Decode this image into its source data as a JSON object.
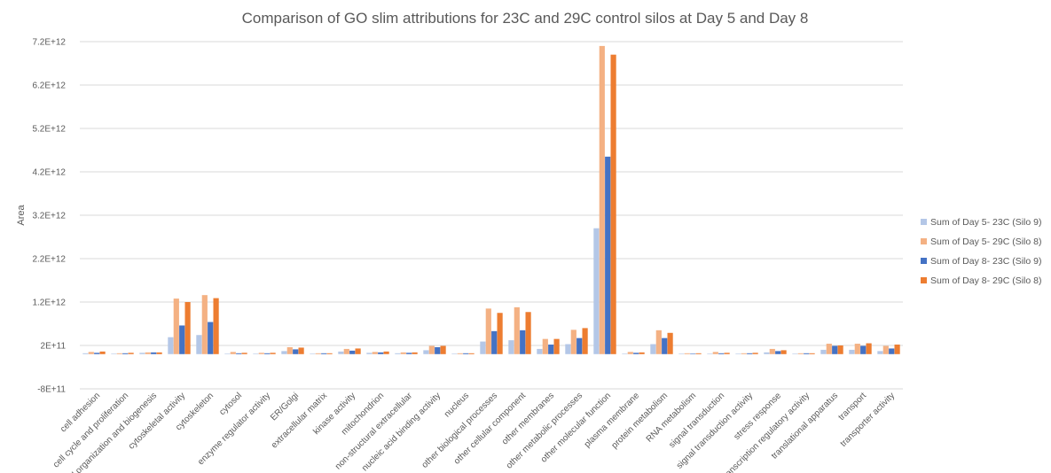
{
  "chart_data": {
    "type": "bar",
    "title": "Comparison of GO slim attributions for 23C and 29C control silos at Day 5 and Day 8",
    "xlabel": "",
    "ylabel": "Area",
    "ylim": [
      -800000000000,
      7200000000000
    ],
    "yticks": [
      -800000000000,
      200000000000,
      1200000000000,
      2200000000000,
      3200000000000,
      4200000000000,
      5200000000000,
      6200000000000,
      7200000000000
    ],
    "ytick_labels": [
      "-8E+11",
      "2E+11",
      "1.2E+12",
      "2.2E+12",
      "3.2E+12",
      "4.2E+12",
      "5.2E+12",
      "6.2E+12",
      "7.2E+12"
    ],
    "grid": true,
    "legend_position": "right",
    "categories": [
      "cell adhesion",
      "cell cycle and proliferation",
      "cell organization and biogenesis",
      "cytoskeletal activity",
      "cytoskeleton",
      "cytosol",
      "enzyme regulator activity",
      "ER/Golgi",
      "extracellular matrix",
      "kinase activity",
      "mitochondrion",
      "non-structural extracellular",
      "nucleic acid binding activity",
      "nucleus",
      "other biological processes",
      "other cellular component",
      "other membranes",
      "other metabolic processes",
      "other molecular function",
      "plasma membrane",
      "protein metabolism",
      "RNA metabolism",
      "signal transduction",
      "signal transduction activity",
      "stress response",
      "transcription regulatory activity",
      "translational apparatus",
      "transport",
      "transporter activity"
    ],
    "series": [
      {
        "name": "Sum of Day 5- 23C (Silo 9)",
        "color": "#b4c7e7",
        "values": [
          20000000000,
          10000000000,
          30000000000,
          390000000000,
          440000000000,
          10000000000,
          10000000000,
          70000000000,
          10000000000,
          60000000000,
          30000000000,
          20000000000,
          90000000000,
          10000000000,
          290000000000,
          320000000000,
          120000000000,
          230000000000,
          2900000000000,
          10000000000,
          230000000000,
          10000000000,
          10000000000,
          10000000000,
          40000000000,
          10000000000,
          100000000000,
          100000000000,
          70000000000
        ]
      },
      {
        "name": "Sum of Day 5- 29C (Silo 8)",
        "color": "#f4b183",
        "values": [
          50000000000,
          20000000000,
          40000000000,
          1280000000000,
          1360000000000,
          50000000000,
          30000000000,
          160000000000,
          20000000000,
          120000000000,
          50000000000,
          40000000000,
          190000000000,
          20000000000,
          1050000000000,
          1080000000000,
          350000000000,
          560000000000,
          7100000000000,
          50000000000,
          550000000000,
          20000000000,
          50000000000,
          20000000000,
          120000000000,
          20000000000,
          240000000000,
          240000000000,
          190000000000
        ]
      },
      {
        "name": "Sum of Day 8- 23C (Silo 9)",
        "color": "#4472c4",
        "values": [
          30000000000,
          20000000000,
          40000000000,
          660000000000,
          740000000000,
          20000000000,
          20000000000,
          110000000000,
          20000000000,
          80000000000,
          40000000000,
          30000000000,
          160000000000,
          20000000000,
          530000000000,
          550000000000,
          220000000000,
          370000000000,
          4550000000000,
          30000000000,
          370000000000,
          10000000000,
          20000000000,
          20000000000,
          70000000000,
          20000000000,
          190000000000,
          190000000000,
          130000000000
        ]
      },
      {
        "name": "Sum of Day 8- 29C (Silo 8)",
        "color": "#ed7d31",
        "values": [
          60000000000,
          30000000000,
          40000000000,
          1200000000000,
          1290000000000,
          30000000000,
          30000000000,
          150000000000,
          20000000000,
          130000000000,
          60000000000,
          40000000000,
          190000000000,
          20000000000,
          950000000000,
          970000000000,
          350000000000,
          600000000000,
          6900000000000,
          40000000000,
          490000000000,
          20000000000,
          30000000000,
          30000000000,
          90000000000,
          20000000000,
          200000000000,
          250000000000,
          220000000000
        ]
      }
    ]
  }
}
